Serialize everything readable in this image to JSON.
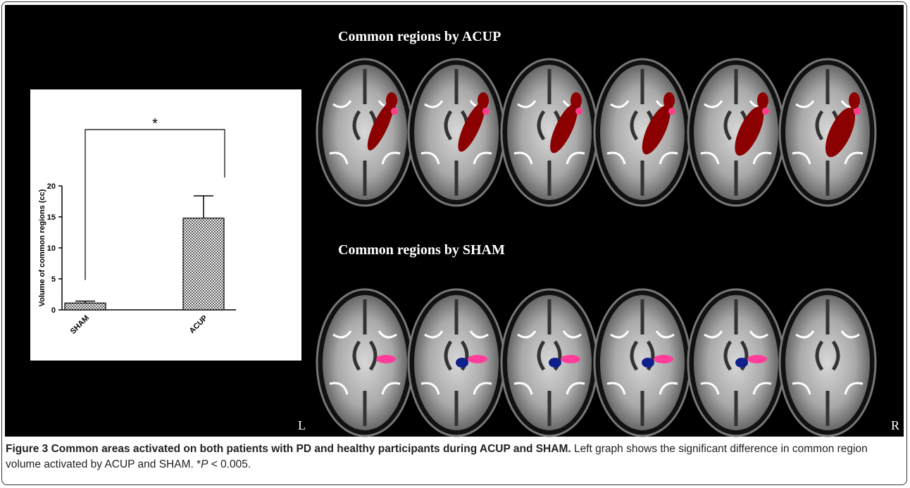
{
  "panel_titles": [
    "Common regions by ACUP",
    "Common regions by SHAM"
  ],
  "orientation": {
    "left": "L",
    "right": "R"
  },
  "chart_data": {
    "type": "bar",
    "ylabel": "Volume of common regions (cc)",
    "categories": [
      "SHAM",
      "ACUP"
    ],
    "values": [
      1.1,
      14.8
    ],
    "errors": [
      0.3,
      3.6
    ],
    "ylim": [
      0,
      20
    ],
    "yticks": [
      0,
      5,
      10,
      15,
      20
    ],
    "significance": "*"
  },
  "caption": {
    "title": "Figure 3 Common areas activated on both patients with PD and healthy participants during ACUP and SHAM.",
    "text": [
      "Left graph shows the significant difference in common region volume activated by ACUP and SHAM. *",
      "P",
      " < 0.005."
    ]
  }
}
